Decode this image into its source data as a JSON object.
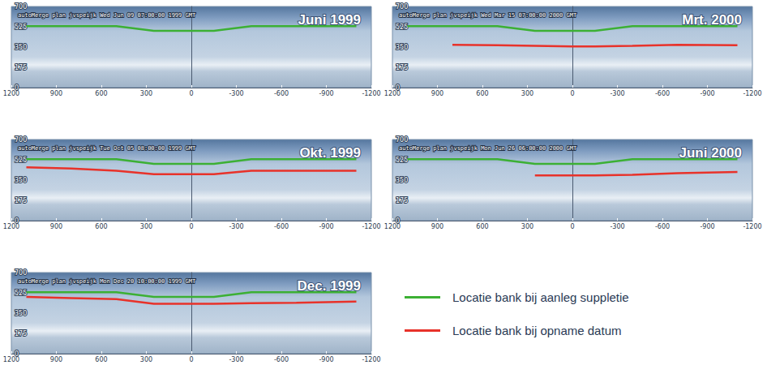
{
  "chart_data": [
    {
      "type": "line",
      "title": "Juni 1999",
      "subtitle": "autoMerge plan jvspeijk Wed Jun 09 07:00:00 1999 GMT",
      "x": [
        1100,
        800,
        500,
        250,
        0,
        -150,
        -400,
        -700,
        -1100
      ],
      "series": [
        {
          "name": "Locatie bank bij aanleg suppletie",
          "color": "#3cb034",
          "values": [
            530,
            530,
            530,
            490,
            490,
            490,
            530,
            530,
            530
          ]
        }
      ],
      "xlim": [
        1200,
        -1200
      ],
      "xticks": [
        1200,
        900,
        600,
        300,
        0,
        -300,
        -600,
        -900,
        -1200
      ],
      "ylim": [
        0,
        700
      ],
      "yticks": [
        0,
        175,
        350,
        525,
        700
      ],
      "grid": false
    },
    {
      "type": "line",
      "title": "Okt. 1999",
      "subtitle": "autoMerge plan jvspeijk Tue Oct 05 08:00:00 1999 GMT",
      "x": [
        1100,
        800,
        500,
        250,
        0,
        -150,
        -400,
        -700,
        -1100
      ],
      "series": [
        {
          "name": "Locatie bank bij aanleg suppletie",
          "color": "#3cb034",
          "values": [
            530,
            530,
            530,
            490,
            490,
            490,
            530,
            530,
            530
          ]
        },
        {
          "name": "Locatie bank bij opname datum",
          "color": "#e8322a",
          "values": [
            460,
            450,
            430,
            400,
            400,
            400,
            430,
            430,
            430
          ]
        }
      ],
      "xlim": [
        1200,
        -1200
      ],
      "xticks": [
        1200,
        900,
        600,
        300,
        0,
        -300,
        -600,
        -900,
        -1200
      ],
      "ylim": [
        0,
        700
      ],
      "yticks": [
        0,
        175,
        350,
        525,
        700
      ],
      "grid": false
    },
    {
      "type": "line",
      "title": "Dec. 1999",
      "subtitle": "autoMerge plan jvspeijk Mon Dec 20 10:00:00 1999 GMT",
      "x": [
        1100,
        800,
        500,
        250,
        0,
        -150,
        -400,
        -700,
        -1100
      ],
      "series": [
        {
          "name": "Locatie bank bij aanleg suppletie",
          "color": "#3cb034",
          "values": [
            530,
            530,
            530,
            490,
            490,
            490,
            530,
            530,
            530
          ]
        },
        {
          "name": "Locatie bank bij opname datum",
          "color": "#e8322a",
          "values": [
            490,
            480,
            470,
            430,
            430,
            430,
            435,
            440,
            450
          ]
        }
      ],
      "xlim": [
        1200,
        -1200
      ],
      "xticks": [
        1200,
        900,
        600,
        300,
        0,
        -300,
        -600,
        -900,
        -1200
      ],
      "ylim": [
        0,
        700
      ],
      "yticks": [
        0,
        175,
        350,
        525,
        700
      ],
      "grid": false
    },
    {
      "type": "line",
      "title": "Mrt. 2000",
      "subtitle": "autoMerge plan jvspeijk Wed Mar 15 07:00:00 2000 GMT",
      "x": [
        1100,
        800,
        500,
        250,
        0,
        -150,
        -400,
        -700,
        -1100
      ],
      "series": [
        {
          "name": "Locatie bank bij aanleg suppletie",
          "color": "#3cb034",
          "values": [
            530,
            530,
            530,
            490,
            490,
            490,
            530,
            530,
            530
          ]
        },
        {
          "name": "Locatie bank bij opname datum",
          "color": "#e8322a",
          "values": [
            null,
            370,
            365,
            360,
            355,
            355,
            360,
            370,
            365
          ]
        }
      ],
      "xlim": [
        1200,
        -1200
      ],
      "xticks": [
        1200,
        900,
        600,
        300,
        0,
        -300,
        -600,
        -900,
        -1200
      ],
      "ylim": [
        0,
        700
      ],
      "yticks": [
        0,
        175,
        350,
        525,
        700
      ],
      "grid": false
    },
    {
      "type": "line",
      "title": "Juni 2000",
      "subtitle": "autoMerge plan jvspeijk Mon Jun 26 06:00:00 2000 GMT",
      "x": [
        1100,
        800,
        500,
        250,
        0,
        -150,
        -400,
        -700,
        -1100
      ],
      "series": [
        {
          "name": "Locatie bank bij aanleg suppletie",
          "color": "#3cb034",
          "values": [
            530,
            530,
            530,
            490,
            490,
            490,
            530,
            530,
            530
          ]
        },
        {
          "name": "Locatie bank bij opname datum",
          "color": "#e8322a",
          "values": [
            null,
            null,
            null,
            390,
            390,
            390,
            395,
            410,
            420
          ]
        }
      ],
      "xlim": [
        1200,
        -1200
      ],
      "xticks": [
        1200,
        900,
        600,
        300,
        0,
        -300,
        -600,
        -900,
        -1200
      ],
      "ylim": [
        0,
        700
      ],
      "yticks": [
        0,
        175,
        350,
        525,
        700
      ],
      "grid": false,
      "legend": "lower right"
    }
  ]
}
